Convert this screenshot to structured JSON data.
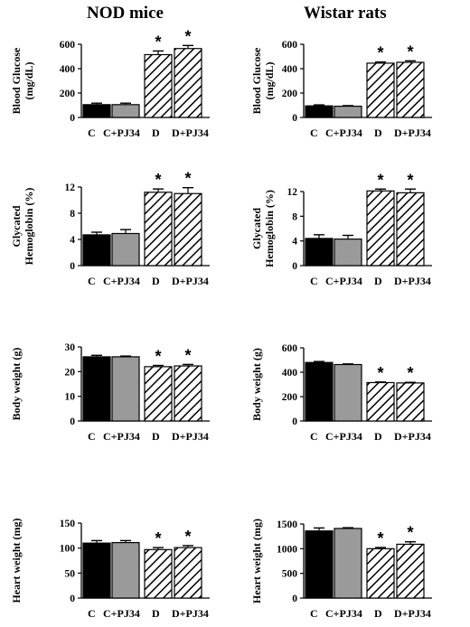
{
  "titles": {
    "left": "NOD mice",
    "right": "Wistar rats"
  },
  "chart_data": [
    {
      "id": "nod-glucose",
      "type": "bar",
      "ylabel": [
        "Blood Glucose",
        "(mg/dL)"
      ],
      "categories": [
        "C",
        "C+PJ34",
        "D",
        "D+PJ34"
      ],
      "values": [
        105,
        105,
        515,
        565
      ],
      "errors": [
        12,
        12,
        30,
        25
      ],
      "fills": [
        "black",
        "gray",
        "hatch",
        "hatch"
      ],
      "significant": [
        false,
        false,
        true,
        true
      ],
      "ylim": [
        0,
        600
      ],
      "yticks": [
        0,
        200,
        400,
        600
      ]
    },
    {
      "id": "rat-glucose",
      "type": "bar",
      "ylabel": [
        "Blood Glucose",
        "(mg/dL)"
      ],
      "categories": [
        "C",
        "C+PJ34",
        "D",
        "D+PJ34"
      ],
      "values": [
        95,
        92,
        445,
        452
      ],
      "errors": [
        8,
        5,
        10,
        12
      ],
      "fills": [
        "black",
        "gray",
        "hatch",
        "hatch"
      ],
      "significant": [
        false,
        false,
        true,
        true
      ],
      "ylim": [
        0,
        600
      ],
      "yticks": [
        0,
        200,
        400,
        600
      ]
    },
    {
      "id": "nod-hba1c",
      "type": "bar",
      "ylabel": [
        "Glycated",
        "Hemoglobin (%)"
      ],
      "categories": [
        "C",
        "C+PJ34",
        "D",
        "D+PJ34"
      ],
      "values": [
        4.7,
        4.9,
        11.2,
        11.0
      ],
      "errors": [
        0.4,
        0.6,
        0.5,
        0.9
      ],
      "fills": [
        "black",
        "gray",
        "hatch",
        "hatch"
      ],
      "significant": [
        false,
        false,
        true,
        true
      ],
      "ylim": [
        0,
        12
      ],
      "yticks": [
        0,
        4,
        8,
        12
      ]
    },
    {
      "id": "rat-hba1c",
      "type": "bar",
      "ylabel": [
        "Glycated",
        "Hemoglobin (%)"
      ],
      "categories": [
        "C",
        "C+PJ34",
        "D",
        "D+PJ34"
      ],
      "values": [
        4.4,
        4.3,
        12.1,
        11.8
      ],
      "errors": [
        0.6,
        0.6,
        0.3,
        0.6
      ],
      "fills": [
        "black",
        "gray",
        "hatch",
        "hatch"
      ],
      "significant": [
        false,
        false,
        true,
        true
      ],
      "ylim": [
        0,
        12
      ],
      "yticks": [
        0,
        4,
        8,
        12
      ]
    },
    {
      "id": "nod-bw",
      "type": "bar",
      "ylabel": [
        "Body weight (g)"
      ],
      "categories": [
        "C",
        "C+PJ34",
        "D",
        "D+PJ34"
      ],
      "values": [
        26,
        26,
        22,
        22.3
      ],
      "errors": [
        0.6,
        0.3,
        0.5,
        0.6
      ],
      "fills": [
        "black",
        "gray",
        "hatch",
        "hatch"
      ],
      "significant": [
        false,
        false,
        true,
        true
      ],
      "ylim": [
        0,
        30
      ],
      "yticks": [
        0,
        10,
        20,
        30
      ]
    },
    {
      "id": "rat-bw",
      "type": "bar",
      "ylabel": [
        "Body weight (g)"
      ],
      "categories": [
        "C",
        "C+PJ34",
        "D",
        "D+PJ34"
      ],
      "values": [
        480,
        463,
        315,
        312
      ],
      "errors": [
        8,
        5,
        5,
        5
      ],
      "fills": [
        "black",
        "gray",
        "hatch",
        "hatch"
      ],
      "significant": [
        false,
        false,
        true,
        true
      ],
      "ylim": [
        0,
        600
      ],
      "yticks": [
        0,
        200,
        400,
        600
      ]
    },
    {
      "id": "nod-hw",
      "type": "bar",
      "ylabel": [
        "Heart weight (mg)"
      ],
      "categories": [
        "C",
        "C+PJ34",
        "D",
        "D+PJ34"
      ],
      "values": [
        110,
        111,
        97,
        101
      ],
      "errors": [
        5,
        4,
        4,
        4
      ],
      "fills": [
        "black",
        "gray",
        "hatch",
        "hatch"
      ],
      "significant": [
        false,
        false,
        true,
        true
      ],
      "ylim": [
        0,
        150
      ],
      "yticks": [
        0,
        50,
        100,
        150
      ]
    },
    {
      "id": "rat-hw",
      "type": "bar",
      "ylabel": [
        "Heart weight (mg)"
      ],
      "categories": [
        "C",
        "C+PJ34",
        "D",
        "D+PJ34"
      ],
      "values": [
        1360,
        1410,
        1000,
        1090
      ],
      "errors": [
        60,
        15,
        25,
        50
      ],
      "fills": [
        "black",
        "gray",
        "hatch",
        "hatch"
      ],
      "significant": [
        false,
        false,
        true,
        true
      ],
      "ylim": [
        0,
        1500
      ],
      "yticks": [
        0,
        500,
        1000,
        1500
      ]
    }
  ],
  "colors": {
    "black": "#000000",
    "gray": "#9a9a9a",
    "hatch_bg": "#ffffff",
    "ink": "#000000"
  },
  "significance_marker": "*"
}
